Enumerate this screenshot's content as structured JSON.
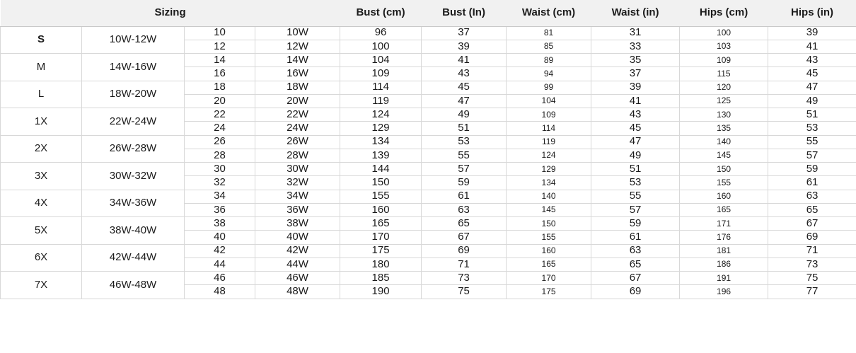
{
  "colors": {
    "header_bg": "#f1f1f1",
    "border": "#d8d8d8",
    "header_border": "#c9c9c9",
    "text": "#1b1b1b"
  },
  "chart_data": {
    "type": "table",
    "title": "Sizing",
    "header": {
      "sizing": "Sizing",
      "measure_columns": [
        "Bust (cm)",
        "Bust (In)",
        "Waist (cm)",
        "Waist (in)",
        "Hips (cm)",
        "Hips (in)"
      ]
    },
    "groups": [
      {
        "size": "S",
        "range": "10W-12W",
        "size_bold": true,
        "rows": [
          {
            "num": "10",
            "numw": "10W",
            "bust_cm": "96",
            "bust_in": "37",
            "waist_cm": "81",
            "waist_in": "31",
            "hips_cm": "100",
            "hips_in": "39"
          },
          {
            "num": "12",
            "numw": "12W",
            "bust_cm": "100",
            "bust_in": "39",
            "waist_cm": "85",
            "waist_in": "33",
            "hips_cm": "103",
            "hips_in": "41"
          }
        ]
      },
      {
        "size": "M",
        "range": "14W-16W",
        "size_bold": false,
        "rows": [
          {
            "num": "14",
            "numw": "14W",
            "bust_cm": "104",
            "bust_in": "41",
            "waist_cm": "89",
            "waist_in": "35",
            "hips_cm": "109",
            "hips_in": "43"
          },
          {
            "num": "16",
            "numw": "16W",
            "bust_cm": "109",
            "bust_in": "43",
            "waist_cm": "94",
            "waist_in": "37",
            "hips_cm": "115",
            "hips_in": "45"
          }
        ]
      },
      {
        "size": "L",
        "range": "18W-20W",
        "size_bold": false,
        "rows": [
          {
            "num": "18",
            "numw": "18W",
            "bust_cm": "114",
            "bust_in": "45",
            "waist_cm": "99",
            "waist_in": "39",
            "hips_cm": "120",
            "hips_in": "47"
          },
          {
            "num": "20",
            "numw": "20W",
            "bust_cm": "119",
            "bust_in": "47",
            "waist_cm": "104",
            "waist_in": "41",
            "hips_cm": "125",
            "hips_in": "49"
          }
        ]
      },
      {
        "size": "1X",
        "range": "22W-24W",
        "size_bold": false,
        "rows": [
          {
            "num": "22",
            "numw": "22W",
            "bust_cm": "124",
            "bust_in": "49",
            "waist_cm": "109",
            "waist_in": "43",
            "hips_cm": "130",
            "hips_in": "51"
          },
          {
            "num": "24",
            "numw": "24W",
            "bust_cm": "129",
            "bust_in": "51",
            "waist_cm": "114",
            "waist_in": "45",
            "hips_cm": "135",
            "hips_in": "53"
          }
        ]
      },
      {
        "size": "2X",
        "range": "26W-28W",
        "size_bold": false,
        "rows": [
          {
            "num": "26",
            "numw": "26W",
            "bust_cm": "134",
            "bust_in": "53",
            "waist_cm": "119",
            "waist_in": "47",
            "hips_cm": "140",
            "hips_in": "55"
          },
          {
            "num": "28",
            "numw": "28W",
            "bust_cm": "139",
            "bust_in": "55",
            "waist_cm": "124",
            "waist_in": "49",
            "hips_cm": "145",
            "hips_in": "57"
          }
        ]
      },
      {
        "size": "3X",
        "range": "30W-32W",
        "size_bold": false,
        "rows": [
          {
            "num": "30",
            "numw": "30W",
            "bust_cm": "144",
            "bust_in": "57",
            "waist_cm": "129",
            "waist_in": "51",
            "hips_cm": "150",
            "hips_in": "59"
          },
          {
            "num": "32",
            "numw": "32W",
            "bust_cm": "150",
            "bust_in": "59",
            "waist_cm": "134",
            "waist_in": "53",
            "hips_cm": "155",
            "hips_in": "61"
          }
        ]
      },
      {
        "size": "4X",
        "range": "34W-36W",
        "size_bold": false,
        "rows": [
          {
            "num": "34",
            "numw": "34W",
            "bust_cm": "155",
            "bust_in": "61",
            "waist_cm": "140",
            "waist_in": "55",
            "hips_cm": "160",
            "hips_in": "63"
          },
          {
            "num": "36",
            "numw": "36W",
            "bust_cm": "160",
            "bust_in": "63",
            "waist_cm": "145",
            "waist_in": "57",
            "hips_cm": "165",
            "hips_in": "65"
          }
        ]
      },
      {
        "size": "5X",
        "range": "38W-40W",
        "size_bold": false,
        "rows": [
          {
            "num": "38",
            "numw": "38W",
            "bust_cm": "165",
            "bust_in": "65",
            "waist_cm": "150",
            "waist_in": "59",
            "hips_cm": "171",
            "hips_in": "67"
          },
          {
            "num": "40",
            "numw": "40W",
            "bust_cm": "170",
            "bust_in": "67",
            "waist_cm": "155",
            "waist_in": "61",
            "hips_cm": "176",
            "hips_in": "69"
          }
        ]
      },
      {
        "size": "6X",
        "range": "42W-44W",
        "size_bold": false,
        "rows": [
          {
            "num": "42",
            "numw": "42W",
            "bust_cm": "175",
            "bust_in": "69",
            "waist_cm": "160",
            "waist_in": "63",
            "hips_cm": "181",
            "hips_in": "71"
          },
          {
            "num": "44",
            "numw": "44W",
            "bust_cm": "180",
            "bust_in": "71",
            "waist_cm": "165",
            "waist_in": "65",
            "hips_cm": "186",
            "hips_in": "73"
          }
        ]
      },
      {
        "size": "7X",
        "range": "46W-48W",
        "size_bold": false,
        "rows": [
          {
            "num": "46",
            "numw": "46W",
            "bust_cm": "185",
            "bust_in": "73",
            "waist_cm": "170",
            "waist_in": "67",
            "hips_cm": "191",
            "hips_in": "75"
          },
          {
            "num": "48",
            "numw": "48W",
            "bust_cm": "190",
            "bust_in": "75",
            "waist_cm": "175",
            "waist_in": "69",
            "hips_cm": "196",
            "hips_in": "77"
          }
        ]
      }
    ]
  }
}
